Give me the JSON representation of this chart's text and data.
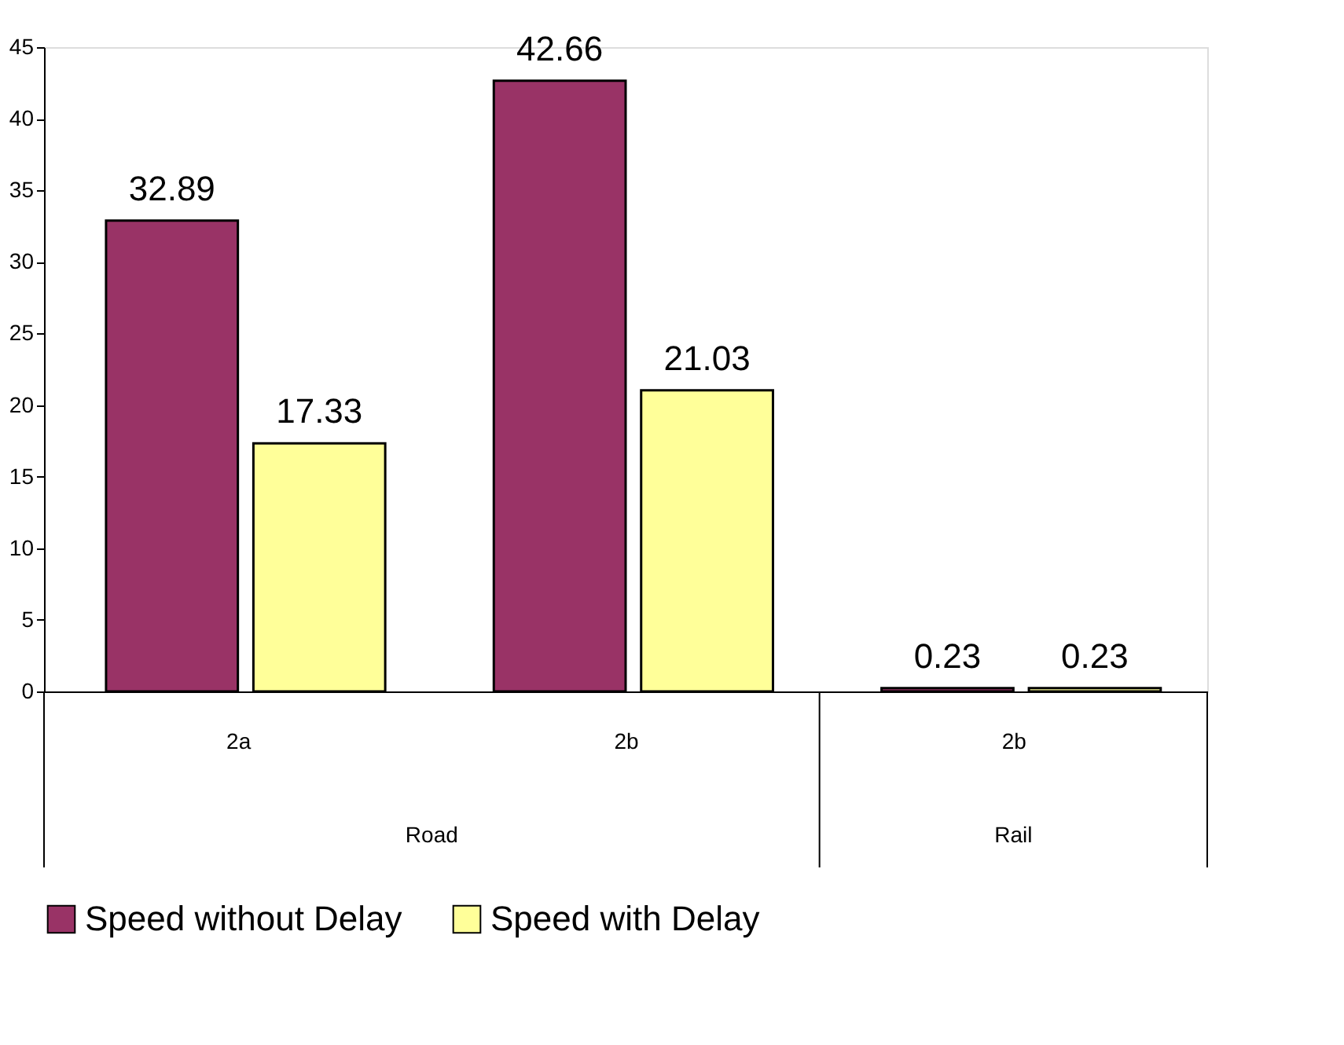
{
  "chart_data": {
    "type": "bar",
    "categories": [
      "2a",
      "2b",
      "2b"
    ],
    "series": [
      {
        "name": "Speed without Delay",
        "color": "#993366",
        "values": [
          32.89,
          42.66,
          0.23
        ]
      },
      {
        "name": "Speed with Delay",
        "color": "#ffff99",
        "values": [
          17.33,
          21.03,
          0.23
        ]
      }
    ],
    "ylim": [
      0,
      45
    ],
    "yticks": [
      0,
      5,
      10,
      15,
      20,
      25,
      30,
      35,
      40,
      45
    ],
    "data_labels": true,
    "grid": false,
    "legend": "bottom",
    "annotations": [
      "Road",
      "Rail"
    ]
  }
}
